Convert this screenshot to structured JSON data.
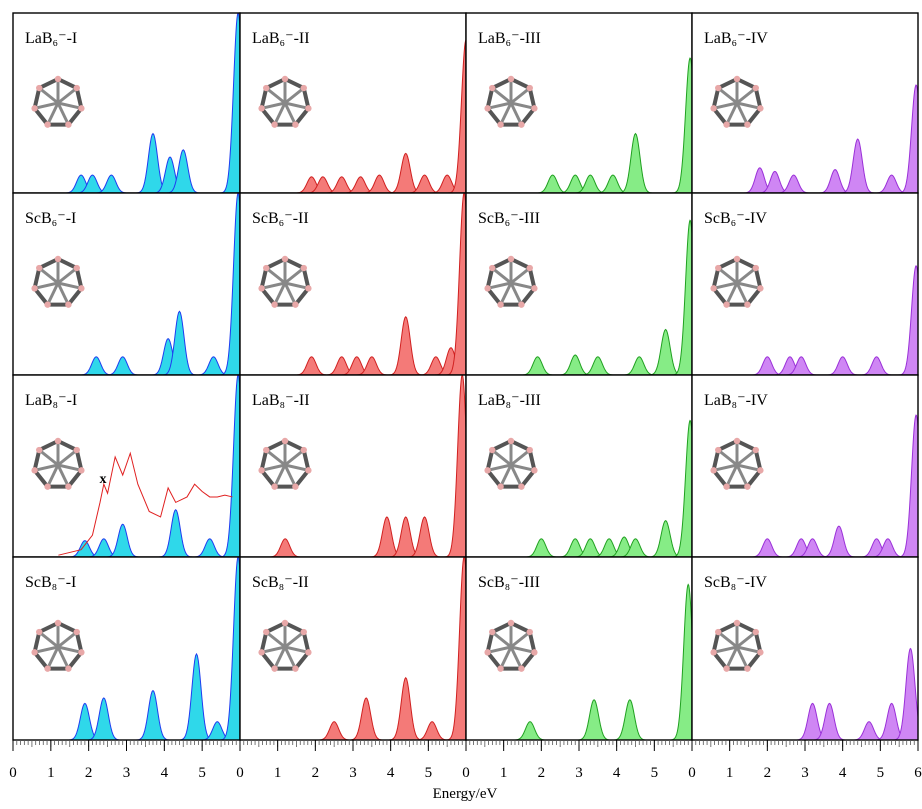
{
  "xlabel": "Energy/eV",
  "chart_data": [
    {
      "type": "area",
      "title": "LaB₆⁻-I",
      "color": "#2fd8ea",
      "edge_color": "#1f3cf0",
      "xlim": [
        0,
        6
      ],
      "ylim": [
        0,
        1
      ],
      "x": [
        1.8,
        2.1,
        2.6,
        3.7,
        4.15,
        4.5,
        5.95
      ],
      "values": [
        0.1,
        0.1,
        0.1,
        0.33,
        0.2,
        0.24,
        1.0
      ]
    },
    {
      "type": "area",
      "title": "LaB₆⁻-II",
      "color": "#f47a78",
      "edge_color": "#d02020",
      "xlim": [
        0,
        6
      ],
      "ylim": [
        0,
        1
      ],
      "x": [
        1.9,
        2.2,
        2.7,
        3.2,
        3.7,
        4.4,
        4.9,
        5.5,
        6.0
      ],
      "values": [
        0.09,
        0.09,
        0.09,
        0.09,
        0.1,
        0.22,
        0.1,
        0.1,
        0.85
      ]
    },
    {
      "type": "area",
      "title": "LaB₆⁻-III",
      "color": "#86ec86",
      "edge_color": "#20a020",
      "xlim": [
        0,
        6
      ],
      "ylim": [
        0,
        1
      ],
      "x": [
        2.3,
        2.9,
        3.3,
        3.9,
        4.5,
        5.95
      ],
      "values": [
        0.1,
        0.1,
        0.1,
        0.1,
        0.33,
        0.75
      ]
    },
    {
      "type": "area",
      "title": "LaB₆⁻-IV",
      "color": "#cf86f4",
      "edge_color": "#9a30d8",
      "xlim": [
        0,
        6
      ],
      "ylim": [
        0,
        1
      ],
      "x": [
        1.8,
        2.2,
        2.7,
        3.8,
        4.4,
        5.3,
        5.95
      ],
      "values": [
        0.14,
        0.12,
        0.1,
        0.13,
        0.3,
        0.1,
        0.6
      ]
    },
    {
      "type": "area",
      "title": "ScB₆⁻-I",
      "color": "#2fd8ea",
      "edge_color": "#1f3cf0",
      "xlim": [
        0,
        6
      ],
      "ylim": [
        0,
        1
      ],
      "x": [
        2.2,
        2.9,
        4.1,
        4.4,
        5.3,
        5.95
      ],
      "values": [
        0.1,
        0.1,
        0.2,
        0.35,
        0.1,
        1.0
      ]
    },
    {
      "type": "area",
      "title": "ScB₆⁻-II",
      "color": "#f47a78",
      "edge_color": "#d02020",
      "xlim": [
        0,
        6
      ],
      "ylim": [
        0,
        1
      ],
      "x": [
        1.9,
        2.7,
        3.1,
        3.5,
        4.4,
        5.2,
        5.6,
        5.95
      ],
      "values": [
        0.1,
        0.1,
        0.1,
        0.1,
        0.32,
        0.1,
        0.15,
        1.0
      ]
    },
    {
      "type": "area",
      "title": "ScB₆⁻-III",
      "color": "#86ec86",
      "edge_color": "#20a020",
      "xlim": [
        0,
        6
      ],
      "ylim": [
        0,
        1
      ],
      "x": [
        1.9,
        2.9,
        3.5,
        4.6,
        5.3,
        5.95
      ],
      "values": [
        0.1,
        0.11,
        0.1,
        0.1,
        0.25,
        0.85
      ]
    },
    {
      "type": "area",
      "title": "ScB₆⁻-IV",
      "color": "#cf86f4",
      "edge_color": "#9a30d8",
      "xlim": [
        0,
        6
      ],
      "ylim": [
        0,
        1
      ],
      "x": [
        2.0,
        2.6,
        2.9,
        4.0,
        4.9,
        5.95
      ],
      "values": [
        0.1,
        0.1,
        0.1,
        0.1,
        0.1,
        0.6
      ]
    },
    {
      "type": "area",
      "title": "LaB₈⁻-I",
      "color": "#2fd8ea",
      "edge_color": "#1f3cf0",
      "xlim": [
        0,
        6
      ],
      "ylim": [
        0,
        1
      ],
      "x": [
        1.9,
        2.4,
        2.9,
        4.3,
        5.2,
        5.95
      ],
      "values": [
        0.09,
        0.1,
        0.18,
        0.26,
        0.1,
        1.0
      ],
      "experiment": {
        "color": "#e02020",
        "x": [
          1.2,
          1.8,
          2.1,
          2.3,
          2.4,
          2.5,
          2.7,
          2.9,
          3.1,
          3.3,
          3.6,
          3.9,
          4.1,
          4.3,
          4.6,
          4.8,
          5.0,
          5.2,
          5.4,
          5.6,
          5.8
        ],
        "values": [
          0.01,
          0.04,
          0.12,
          0.3,
          0.4,
          0.35,
          0.55,
          0.45,
          0.57,
          0.4,
          0.25,
          0.22,
          0.38,
          0.3,
          0.33,
          0.4,
          0.36,
          0.33,
          0.33,
          0.34,
          0.33
        ]
      },
      "annotation": "x"
    },
    {
      "type": "area",
      "title": "LaB₈⁻-II",
      "color": "#f47a78",
      "edge_color": "#d02020",
      "xlim": [
        0,
        6
      ],
      "ylim": [
        0,
        1
      ],
      "x": [
        1.2,
        3.9,
        4.4,
        4.9,
        5.9
      ],
      "values": [
        0.1,
        0.22,
        0.22,
        0.22,
        1.0
      ]
    },
    {
      "type": "area",
      "title": "LaB₈⁻-III",
      "color": "#86ec86",
      "edge_color": "#20a020",
      "xlim": [
        0,
        6
      ],
      "ylim": [
        0,
        1
      ],
      "x": [
        2.0,
        2.9,
        3.3,
        3.8,
        4.2,
        4.5,
        5.3,
        5.95
      ],
      "values": [
        0.1,
        0.1,
        0.1,
        0.1,
        0.11,
        0.1,
        0.2,
        0.75
      ]
    },
    {
      "type": "area",
      "title": "LaB₈⁻-IV",
      "color": "#cf86f4",
      "edge_color": "#9a30d8",
      "xlim": [
        0,
        6
      ],
      "ylim": [
        0,
        1
      ],
      "x": [
        2.0,
        2.9,
        3.2,
        3.9,
        4.9,
        5.2,
        5.95
      ],
      "values": [
        0.1,
        0.1,
        0.1,
        0.17,
        0.1,
        0.1,
        0.78
      ]
    },
    {
      "type": "area",
      "title": "ScB₈⁻-I",
      "color": "#2fd8ea",
      "edge_color": "#1f3cf0",
      "xlim": [
        0,
        6
      ],
      "ylim": [
        0,
        1
      ],
      "xticks": [
        0,
        1,
        2,
        3,
        4,
        5
      ],
      "x": [
        1.9,
        2.4,
        3.7,
        4.85,
        5.4,
        5.95
      ],
      "values": [
        0.2,
        0.23,
        0.27,
        0.47,
        0.1,
        1.0
      ]
    },
    {
      "type": "area",
      "title": "ScB₈⁻-II",
      "color": "#f47a78",
      "edge_color": "#d02020",
      "xlim": [
        0,
        6
      ],
      "ylim": [
        0,
        1
      ],
      "xticks": [
        0,
        1,
        2,
        3,
        4,
        5
      ],
      "x": [
        2.5,
        3.35,
        4.4,
        5.1,
        5.95
      ],
      "values": [
        0.1,
        0.23,
        0.34,
        0.1,
        1.0
      ]
    },
    {
      "type": "area",
      "title": "ScB₈⁻-III",
      "color": "#86ec86",
      "edge_color": "#20a020",
      "xlim": [
        0,
        6
      ],
      "ylim": [
        0,
        1
      ],
      "xticks": [
        0,
        1,
        2,
        3,
        4,
        5
      ],
      "x": [
        1.7,
        3.4,
        4.35,
        5.9
      ],
      "values": [
        0.1,
        0.22,
        0.22,
        0.85
      ]
    },
    {
      "type": "area",
      "title": "ScB₈⁻-IV",
      "color": "#cf86f4",
      "edge_color": "#9a30d8",
      "xlim": [
        0,
        6
      ],
      "ylim": [
        0,
        1
      ],
      "xticks": [
        0,
        1,
        2,
        3,
        4,
        5,
        6
      ],
      "x": [
        3.2,
        3.65,
        4.7,
        5.3,
        5.8
      ],
      "values": [
        0.2,
        0.2,
        0.1,
        0.2,
        0.5
      ]
    }
  ]
}
